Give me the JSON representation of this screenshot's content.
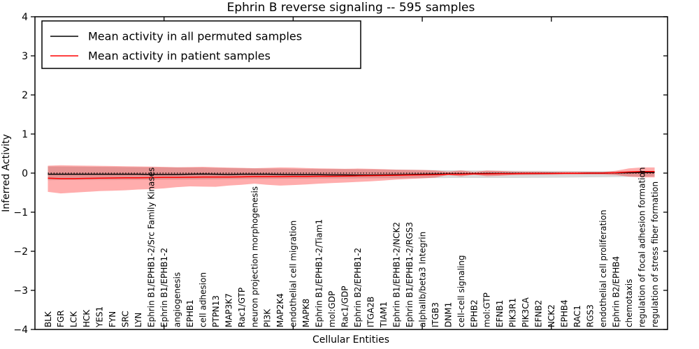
{
  "chart_data": {
    "type": "line",
    "title": "Ephrin B reverse signaling -- 595 samples",
    "xlabel": "Cellular Entities",
    "ylabel": "Inferred Activity",
    "ylim": [
      -4,
      4
    ],
    "x_range": [
      0,
      49
    ],
    "grid": false,
    "yticks": [
      4,
      3,
      2,
      1,
      0,
      -1,
      -2,
      -3,
      -4
    ],
    "ytick_labels": [
      "4",
      "3",
      "2",
      "1",
      "0",
      "−1",
      "−2",
      "−3",
      "−4"
    ],
    "xtick_positions": [
      10,
      20,
      30,
      40
    ],
    "legend": {
      "position": "upper left",
      "items": [
        {
          "label": "Mean activity in all permuted samples",
          "color": "#000000"
        },
        {
          "label": "Mean activity in patient samples",
          "color": "#ff0000"
        }
      ]
    },
    "categories": [
      "BLK",
      "FGR",
      "LCK",
      "HCK",
      "YES1",
      "FYN",
      "SRC",
      "LYN",
      "Ephrin B1/EPHB1-2/Src Family Kinases",
      "Ephrin B1/EPHB1-2",
      "angiogenesis",
      "EPHB1",
      "cell adhesion",
      "PTPN13",
      "MAP3K7",
      "Rac1/GTP",
      "neuron projection morphogenesis",
      "PI3K",
      "MAP2K4",
      "endothelial cell migration",
      "MAPK8",
      "Ephrin B1/EPHB1-2/Tiam1",
      "mol:GDP",
      "Rac1/GDP",
      "Ephrin B2/EPHB1-2",
      "ITGA2B",
      "TIAM1",
      "Ephrin B1/EPHB1-2/NCK2",
      "Ephrin B1/EPHB1-2/RGS3",
      "alphaIIb/beta3 Integrin",
      "ITGB3",
      "DNM1",
      "cell-cell signaling",
      "EPHB2",
      "mol:GTP",
      "EFNB1",
      "PIK3R1",
      "PIK3CA",
      "EFNB2",
      "NCK2",
      "EPHB4",
      "RAC1",
      "RGS3",
      "endothelial cell proliferation",
      "Ephrin B2/EPHB4",
      "chemotaxis",
      "regulation of focal adhesion formation",
      "regulation of stress fiber formation"
    ],
    "reference_line": {
      "y": 0,
      "style": "dotted",
      "color": "#000000"
    },
    "series": [
      {
        "name": "Mean activity in all permuted samples",
        "color": "#000000",
        "values": [
          -0.03,
          -0.03,
          -0.03,
          -0.03,
          -0.03,
          -0.03,
          -0.03,
          -0.03,
          -0.035,
          -0.035,
          -0.035,
          -0.03,
          -0.025,
          -0.03,
          -0.035,
          -0.03,
          -0.03,
          -0.03,
          -0.035,
          -0.04,
          -0.04,
          -0.04,
          -0.045,
          -0.045,
          -0.05,
          -0.05,
          -0.045,
          -0.04,
          -0.035,
          -0.03,
          -0.025,
          -0.02,
          -0.02,
          -0.015,
          -0.01,
          -0.01,
          -0.01,
          -0.01,
          -0.01,
          -0.005,
          -0.005,
          -0.005,
          0,
          0,
          0.005,
          0.01,
          0.015,
          0.015
        ]
      },
      {
        "name": "Mean activity in patient samples",
        "color": "#ff0000",
        "values": [
          -0.13,
          -0.14,
          -0.14,
          -0.135,
          -0.13,
          -0.125,
          -0.12,
          -0.12,
          -0.115,
          -0.11,
          -0.11,
          -0.105,
          -0.1,
          -0.1,
          -0.1,
          -0.095,
          -0.09,
          -0.09,
          -0.09,
          -0.085,
          -0.085,
          -0.08,
          -0.08,
          -0.075,
          -0.07,
          -0.065,
          -0.06,
          -0.055,
          -0.05,
          -0.045,
          -0.04,
          -0.03,
          -0.03,
          -0.02,
          -0.02,
          -0.015,
          -0.015,
          -0.01,
          -0.01,
          -0.01,
          -0.005,
          -0.005,
          0,
          0,
          0.01,
          0.03,
          0.04,
          0.04
        ]
      }
    ],
    "bands": [
      {
        "name": "permuted sample range",
        "color": "rgba(128,128,128,0.30)",
        "upper": [
          0.17,
          0.168,
          0.165,
          0.162,
          0.16,
          0.158,
          0.155,
          0.152,
          0.15,
          0.148,
          0.145,
          0.142,
          0.14,
          0.135,
          0.13,
          0.125,
          0.12,
          0.118,
          0.115,
          0.112,
          0.11,
          0.108,
          0.105,
          0.102,
          0.1,
          0.096,
          0.092,
          0.088,
          0.085,
          0.081,
          0.077,
          0.073,
          0.07,
          0.067,
          0.065,
          0.062,
          0.06,
          0.059,
          0.057,
          0.056,
          0.055,
          0.054,
          0.052,
          0.051,
          0.05,
          0.05,
          0.05,
          0.05
        ],
        "lower": [
          -0.18,
          -0.179,
          -0.178,
          -0.176,
          -0.175,
          -0.174,
          -0.172,
          -0.171,
          -0.17,
          -0.168,
          -0.165,
          -0.162,
          -0.16,
          -0.158,
          -0.155,
          -0.152,
          -0.15,
          -0.148,
          -0.145,
          -0.142,
          -0.14,
          -0.139,
          -0.137,
          -0.136,
          -0.135,
          -0.134,
          -0.132,
          -0.131,
          -0.13,
          -0.129,
          -0.127,
          -0.126,
          -0.125,
          -0.125,
          -0.125,
          -0.125,
          -0.125,
          -0.122,
          -0.12,
          -0.118,
          -0.115,
          -0.112,
          -0.108,
          -0.104,
          -0.1,
          -0.095,
          -0.09,
          -0.085
        ]
      },
      {
        "name": "patient sample range",
        "color": "rgba(255,0,0,0.32)",
        "upper": [
          0.19,
          0.2,
          0.195,
          0.19,
          0.185,
          0.18,
          0.175,
          0.17,
          0.165,
          0.158,
          0.15,
          0.155,
          0.16,
          0.15,
          0.14,
          0.135,
          0.125,
          0.135,
          0.145,
          0.14,
          0.13,
          0.12,
          0.115,
          0.11,
          0.115,
          0.11,
          0.1,
          0.09,
          0.085,
          0.08,
          0.07,
          0.035,
          0.07,
          0.03,
          0.065,
          0.055,
          0.04,
          0.035,
          0.035,
          0.03,
          0.03,
          0.03,
          0.03,
          0.03,
          0.06,
          0.12,
          0.145,
          0.145
        ],
        "lower": [
          -0.48,
          -0.52,
          -0.5,
          -0.48,
          -0.46,
          -0.45,
          -0.44,
          -0.42,
          -0.41,
          -0.39,
          -0.36,
          -0.34,
          -0.345,
          -0.35,
          -0.32,
          -0.3,
          -0.27,
          -0.3,
          -0.32,
          -0.305,
          -0.29,
          -0.27,
          -0.255,
          -0.24,
          -0.225,
          -0.21,
          -0.19,
          -0.165,
          -0.15,
          -0.135,
          -0.115,
          -0.05,
          -0.085,
          -0.04,
          -0.08,
          -0.07,
          -0.05,
          -0.045,
          -0.04,
          -0.04,
          -0.035,
          -0.035,
          -0.035,
          -0.035,
          -0.05,
          -0.09,
          -0.11,
          -0.11
        ]
      }
    ]
  }
}
